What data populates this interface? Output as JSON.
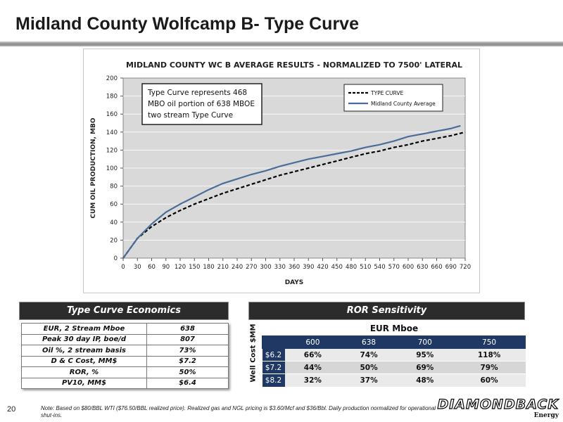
{
  "slide": {
    "title": "Midland County Wolfcamp B- Type Curve",
    "page_number": "20"
  },
  "chart_data": {
    "type": "line",
    "title": "MIDLAND COUNTY WC B AVERAGE RESULTS - NORMALIZED TO 7500' LATERAL",
    "xlabel": "DAYS",
    "ylabel": "CUM OIL PRODUCTION, MBO",
    "xlim": [
      0,
      720
    ],
    "ylim": [
      0,
      200
    ],
    "xticks": [
      0,
      30,
      60,
      90,
      120,
      150,
      180,
      210,
      240,
      270,
      300,
      330,
      360,
      390,
      420,
      450,
      480,
      510,
      540,
      570,
      600,
      630,
      660,
      690,
      720
    ],
    "yticks": [
      0,
      20,
      40,
      60,
      80,
      100,
      120,
      140,
      160,
      180,
      200
    ],
    "grid": "horizontal",
    "plot_background": "#d9d9d9",
    "annotation": [
      "Type Curve represents 468",
      "MBO oil portion of 638 MBOE",
      "two stream Type Curve"
    ],
    "legend_position": "top-right",
    "series": [
      {
        "name": "TYPE CURVE",
        "style": "dashed",
        "color": "#000000",
        "x": [
          0,
          30,
          60,
          90,
          120,
          150,
          180,
          210,
          240,
          270,
          300,
          330,
          360,
          390,
          420,
          450,
          480,
          510,
          540,
          570,
          600,
          630,
          660,
          690,
          720
        ],
        "y": [
          0,
          22,
          35,
          45,
          53,
          60,
          66,
          72,
          77,
          82,
          87,
          92,
          96,
          100,
          104,
          108,
          112,
          116,
          119,
          123,
          126,
          130,
          133,
          136,
          140
        ]
      },
      {
        "name": "Midland County Average",
        "style": "solid",
        "color": "#4a6d99",
        "x": [
          0,
          30,
          60,
          90,
          120,
          150,
          180,
          210,
          240,
          270,
          300,
          330,
          360,
          390,
          420,
          450,
          480,
          510,
          540,
          570,
          600,
          630,
          660,
          690,
          710
        ],
        "y": [
          0,
          22,
          38,
          51,
          60,
          68,
          76,
          83,
          88,
          93,
          97,
          102,
          106,
          110,
          113,
          116,
          119,
          123,
          126,
          130,
          135,
          138,
          141,
          144,
          147
        ]
      }
    ]
  },
  "economics": {
    "header": "Type Curve Economics",
    "rows": [
      {
        "label": "EUR, 2 Stream Mboe",
        "value": "638"
      },
      {
        "label": "Peak 30 day IP, boe/d",
        "value": "807"
      },
      {
        "label": "Oil %, 2 stream basis",
        "value": "73%"
      },
      {
        "label": "D & C Cost, MM$",
        "value": "$7.2"
      },
      {
        "label": "ROR, %",
        "value": "50%"
      },
      {
        "label": "PV10, MM$",
        "value": "$6.4"
      }
    ]
  },
  "ror": {
    "header": "ROR Sensitivity",
    "col_title": "EUR Mboe",
    "row_title": "Well Cost $MM",
    "columns": [
      "600",
      "638",
      "700",
      "750"
    ],
    "rows": [
      {
        "cost": "$6.2",
        "values": [
          "66%",
          "74%",
          "95%",
          "118%"
        ]
      },
      {
        "cost": "$7.2",
        "values": [
          "44%",
          "50%",
          "69%",
          "79%"
        ]
      },
      {
        "cost": "$8.2",
        "values": [
          "32%",
          "37%",
          "48%",
          "60%"
        ]
      }
    ]
  },
  "footnote": "Note: Based on $80/BBL WTI ($76.50/BBL realized price). Realized gas and NGL pricing is $3.60/Mcf and $36/Bbl. Daily production normalized for operational shut-ins.",
  "logo": {
    "main": "DIAMONDBACK",
    "sub": "Energy"
  }
}
